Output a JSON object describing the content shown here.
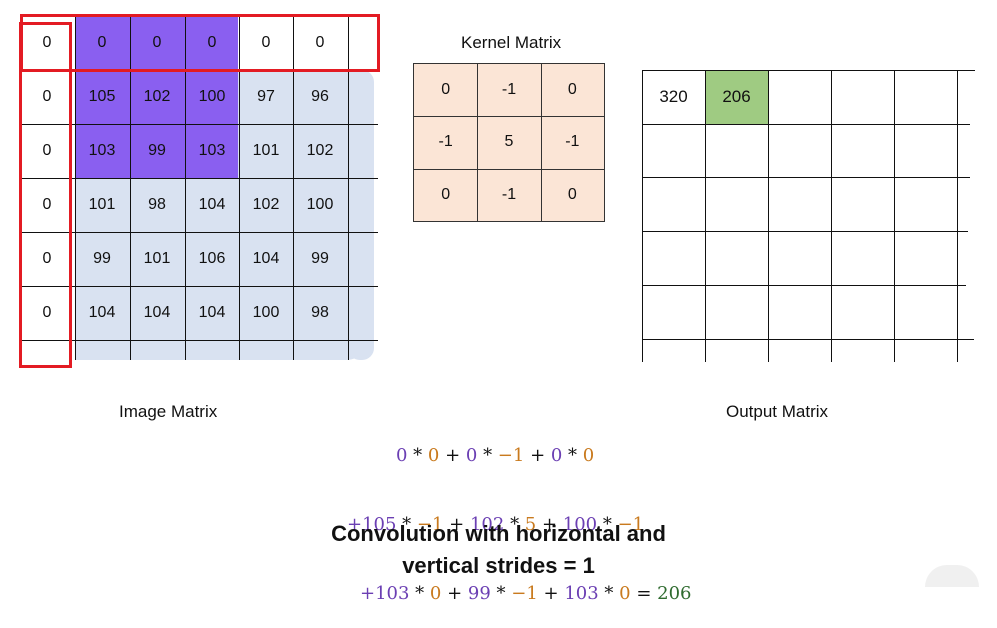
{
  "image_matrix": {
    "label": "Image Matrix",
    "top_row": [
      "0",
      "0",
      "0",
      "0",
      "0",
      "0"
    ],
    "left_col": [
      "0",
      "0",
      "0",
      "0",
      "0"
    ],
    "rows": [
      [
        "105",
        "102",
        "100",
        "97",
        "96"
      ],
      [
        "103",
        "99",
        "103",
        "101",
        "102"
      ],
      [
        "101",
        "98",
        "104",
        "102",
        "100"
      ],
      [
        "99",
        "101",
        "106",
        "104",
        "99"
      ],
      [
        "104",
        "104",
        "104",
        "100",
        "98"
      ]
    ]
  },
  "kernel_matrix": {
    "label": "Kernel Matrix",
    "rows": [
      [
        "0",
        "-1",
        "0"
      ],
      [
        "-1",
        "5",
        "-1"
      ],
      [
        "0",
        "-1",
        "0"
      ]
    ]
  },
  "output_matrix": {
    "label": "Output Matrix",
    "values": [
      "320",
      "206"
    ]
  },
  "formula": {
    "line1": [
      [
        "0",
        "p"
      ],
      [
        " * ",
        ""
      ],
      [
        "0",
        "o"
      ],
      [
        " + ",
        ""
      ],
      [
        "0",
        "p"
      ],
      [
        " * ",
        ""
      ],
      [
        "−1",
        "o"
      ],
      [
        " + ",
        ""
      ],
      [
        "0",
        "p"
      ],
      [
        " * ",
        ""
      ],
      [
        "0",
        "o"
      ]
    ],
    "line2": [
      [
        "+105",
        "p"
      ],
      [
        " * ",
        ""
      ],
      [
        "−1",
        "o"
      ],
      [
        " + ",
        ""
      ],
      [
        "102",
        "p"
      ],
      [
        " * ",
        ""
      ],
      [
        "5",
        "o"
      ],
      [
        " + ",
        ""
      ],
      [
        "100",
        "p"
      ],
      [
        " * ",
        ""
      ],
      [
        "−1",
        "o"
      ]
    ],
    "line3": [
      [
        "+103",
        "p"
      ],
      [
        " * ",
        ""
      ],
      [
        "0",
        "o"
      ],
      [
        " + ",
        ""
      ],
      [
        "99",
        "p"
      ],
      [
        " * ",
        ""
      ],
      [
        "−1",
        "o"
      ],
      [
        " + ",
        ""
      ],
      [
        "103",
        "p"
      ],
      [
        " * ",
        ""
      ],
      [
        "0",
        "o"
      ],
      [
        " = ",
        ""
      ],
      [
        "206",
        "g"
      ]
    ]
  },
  "caption": {
    "line1": "Convolution with horizontal and",
    "line2": "vertical strides = 1"
  },
  "colors": {
    "highlight_purple": "#8a5ff0",
    "image_bg": "#d9e2f1",
    "kernel_bg": "#fbe5d6",
    "output_highlight": "#9fcb82",
    "stride_box": "#e31b23"
  }
}
